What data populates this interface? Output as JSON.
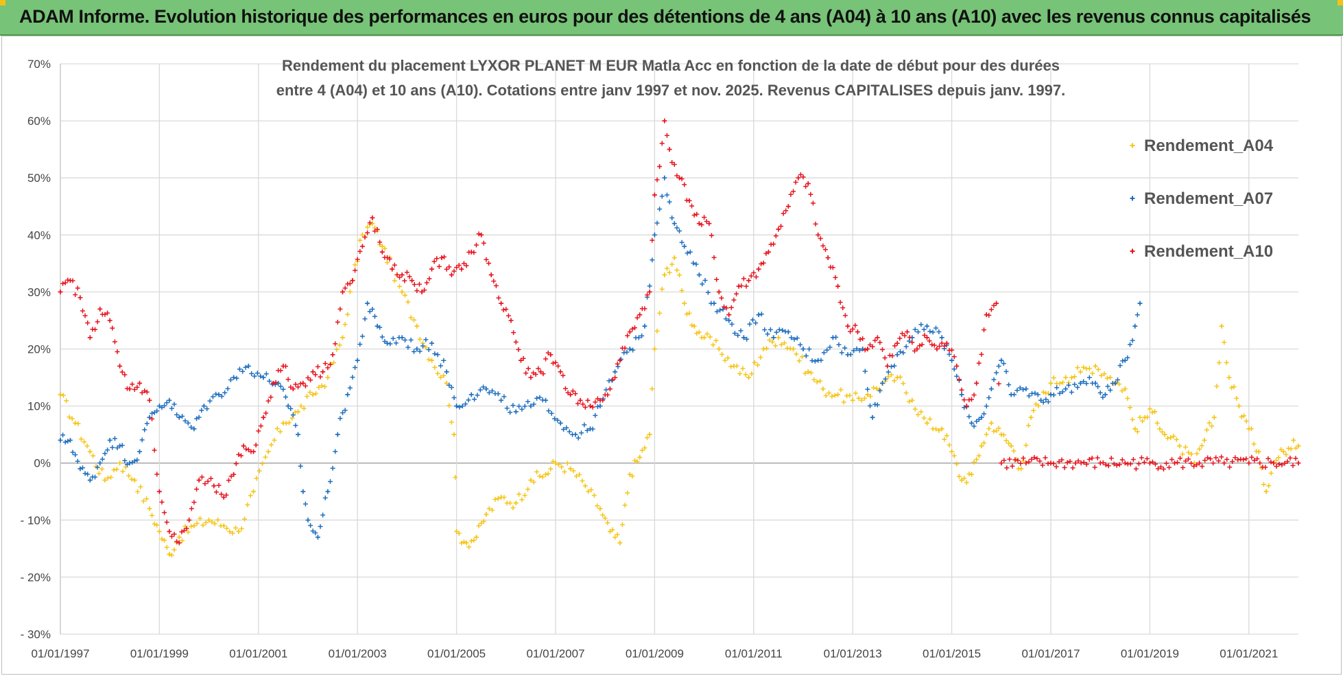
{
  "header": {
    "title": "ADAM Informe. Evolution historique des performances en euros pour des détentions de 4 ans (A04) à 10 ans (A10) avec les revenus connus capitalisés"
  },
  "colors": {
    "A04": "#f5c518",
    "A07": "#1f6fbf",
    "A10": "#e8141e",
    "banner": "#77c377"
  },
  "chart_data": {
    "type": "scatter",
    "title_lines": [
      "Rendement du placement LYXOR  PLANET M  EUR Matla Acc en fonction de la date de début pour des durées",
      "entre 4 (A04) et 10 ans (A10).  Cotations entre janv 1997 et nov. 2025. Revenus CAPITALISES depuis janv. 1997."
    ],
    "xlabel": "",
    "ylabel": "",
    "x_ticks": [
      "01/01/1997",
      "01/01/1999",
      "01/01/2001",
      "01/01/2003",
      "01/01/2005",
      "01/01/2007",
      "01/01/2009",
      "01/01/2011",
      "01/01/2013",
      "01/01/2015",
      "01/01/2017",
      "01/01/2019",
      "01/01/2021"
    ],
    "xlim": [
      1997.0,
      2022.0
    ],
    "y_ticks": [
      "70%",
      "60%",
      "50%",
      "40%",
      "30%",
      "20%",
      "10%",
      "0%",
      "- 10%",
      "- 20%",
      "- 30%"
    ],
    "ylim": [
      -30,
      70
    ],
    "grid": true,
    "legend_position": "top-right",
    "series": [
      {
        "name": "Rendement_A04",
        "color": "#f5c518",
        "points": [
          [
            1997.0,
            12
          ],
          [
            1997.3,
            7
          ],
          [
            1997.6,
            2
          ],
          [
            1997.9,
            -3
          ],
          [
            1998.2,
            0
          ],
          [
            1998.5,
            -3
          ],
          [
            1998.8,
            -8
          ],
          [
            1999.0,
            -12
          ],
          [
            1999.2,
            -16
          ],
          [
            1999.4,
            -13
          ],
          [
            1999.7,
            -11
          ],
          [
            2000.0,
            -10
          ],
          [
            2000.3,
            -11
          ],
          [
            2000.6,
            -12
          ],
          [
            2000.9,
            -5
          ],
          [
            2001.2,
            2
          ],
          [
            2001.5,
            7
          ],
          [
            2001.8,
            9
          ],
          [
            2002.1,
            12
          ],
          [
            2002.4,
            15
          ],
          [
            2002.7,
            22
          ],
          [
            2002.9,
            32
          ],
          [
            2003.1,
            40
          ],
          [
            2003.3,
            42
          ],
          [
            2003.5,
            38
          ],
          [
            2003.7,
            34
          ],
          [
            2003.9,
            30
          ],
          [
            2004.2,
            24
          ],
          [
            2004.5,
            18
          ],
          [
            2004.8,
            14
          ],
          [
            2004.95,
            5
          ],
          [
            2005.0,
            -12
          ],
          [
            2005.2,
            -14
          ],
          [
            2005.4,
            -13
          ],
          [
            2005.6,
            -9
          ],
          [
            2005.9,
            -6
          ],
          [
            2006.2,
            -7
          ],
          [
            2006.5,
            -3
          ],
          [
            2006.8,
            -2
          ],
          [
            2007.0,
            0
          ],
          [
            2007.3,
            -1
          ],
          [
            2007.6,
            -4
          ],
          [
            2007.9,
            -8
          ],
          [
            2008.1,
            -12
          ],
          [
            2008.3,
            -14
          ],
          [
            2008.5,
            -2
          ],
          [
            2008.7,
            1
          ],
          [
            2008.9,
            5
          ],
          [
            2009.0,
            20
          ],
          [
            2009.2,
            33
          ],
          [
            2009.4,
            36
          ],
          [
            2009.6,
            28
          ],
          [
            2009.8,
            24
          ],
          [
            2010.0,
            22
          ],
          [
            2010.3,
            20
          ],
          [
            2010.6,
            17
          ],
          [
            2010.9,
            15
          ],
          [
            2011.2,
            20
          ],
          [
            2011.5,
            22
          ],
          [
            2011.8,
            20
          ],
          [
            2012.1,
            16
          ],
          [
            2012.4,
            13
          ],
          [
            2012.7,
            12
          ],
          [
            2013.0,
            11
          ],
          [
            2013.3,
            12
          ],
          [
            2013.6,
            14
          ],
          [
            2013.9,
            15
          ],
          [
            2014.2,
            11
          ],
          [
            2014.5,
            7
          ],
          [
            2014.8,
            6
          ],
          [
            2015.0,
            2
          ],
          [
            2015.2,
            -3
          ],
          [
            2015.4,
            -2
          ],
          [
            2015.6,
            3
          ],
          [
            2015.8,
            7
          ],
          [
            2016.0,
            5
          ],
          [
            2016.2,
            3
          ],
          [
            2016.4,
            -1
          ],
          [
            2016.6,
            8
          ],
          [
            2016.8,
            11
          ],
          [
            2017.0,
            14
          ],
          [
            2017.3,
            15
          ],
          [
            2017.6,
            16
          ],
          [
            2017.9,
            17
          ],
          [
            2018.2,
            15
          ],
          [
            2018.5,
            13
          ],
          [
            2018.7,
            6
          ],
          [
            2018.9,
            8
          ],
          [
            2019.1,
            9
          ],
          [
            2019.3,
            5
          ],
          [
            2019.6,
            3
          ],
          [
            2019.9,
            0
          ],
          [
            2020.1,
            4
          ],
          [
            2020.3,
            8
          ],
          [
            2020.45,
            24
          ],
          [
            2020.6,
            15
          ],
          [
            2020.8,
            10
          ],
          [
            2021.0,
            6
          ],
          [
            2021.2,
            2
          ],
          [
            2021.35,
            -5
          ],
          [
            2021.5,
            0
          ],
          [
            2021.7,
            2
          ],
          [
            2021.9,
            4
          ],
          [
            2022.0,
            3
          ]
        ]
      },
      {
        "name": "Rendement_A07",
        "color": "#1f6fbf",
        "points": [
          [
            1997.0,
            4
          ],
          [
            1997.2,
            4
          ],
          [
            1997.4,
            -1
          ],
          [
            1997.6,
            -3
          ],
          [
            1997.8,
            0
          ],
          [
            1998.0,
            4
          ],
          [
            1998.2,
            3
          ],
          [
            1998.4,
            0
          ],
          [
            1998.6,
            2
          ],
          [
            1998.8,
            8
          ],
          [
            1999.0,
            10
          ],
          [
            1999.2,
            11
          ],
          [
            1999.4,
            8
          ],
          [
            1999.7,
            6
          ],
          [
            1999.9,
            10
          ],
          [
            2000.2,
            12
          ],
          [
            2000.5,
            15
          ],
          [
            2000.8,
            17
          ],
          [
            2001.1,
            15
          ],
          [
            2001.4,
            14
          ],
          [
            2001.6,
            10
          ],
          [
            2001.8,
            5
          ],
          [
            2001.9,
            -5
          ],
          [
            2002.0,
            -10
          ],
          [
            2002.2,
            -13
          ],
          [
            2002.4,
            -5
          ],
          [
            2002.6,
            5
          ],
          [
            2002.8,
            12
          ],
          [
            2003.0,
            18
          ],
          [
            2003.2,
            28
          ],
          [
            2003.4,
            24
          ],
          [
            2003.6,
            21
          ],
          [
            2003.9,
            22
          ],
          [
            2004.2,
            20
          ],
          [
            2004.5,
            21
          ],
          [
            2004.8,
            16
          ],
          [
            2005.0,
            10
          ],
          [
            2005.3,
            12
          ],
          [
            2005.6,
            13
          ],
          [
            2005.9,
            11
          ],
          [
            2006.2,
            9
          ],
          [
            2006.5,
            10
          ],
          [
            2006.8,
            11
          ],
          [
            2007.1,
            7
          ],
          [
            2007.4,
            5
          ],
          [
            2007.7,
            6
          ],
          [
            2007.9,
            10
          ],
          [
            2008.2,
            16
          ],
          [
            2008.5,
            20
          ],
          [
            2008.8,
            24
          ],
          [
            2009.0,
            40
          ],
          [
            2009.2,
            50
          ],
          [
            2009.4,
            42
          ],
          [
            2009.6,
            38
          ],
          [
            2009.9,
            33
          ],
          [
            2010.2,
            28
          ],
          [
            2010.5,
            25
          ],
          [
            2010.8,
            22
          ],
          [
            2011.1,
            26
          ],
          [
            2011.4,
            22
          ],
          [
            2011.7,
            23
          ],
          [
            2012.0,
            20
          ],
          [
            2012.3,
            18
          ],
          [
            2012.6,
            22
          ],
          [
            2012.9,
            19
          ],
          [
            2013.2,
            20
          ],
          [
            2013.4,
            8
          ],
          [
            2013.6,
            14
          ],
          [
            2013.9,
            19
          ],
          [
            2014.2,
            22
          ],
          [
            2014.5,
            24
          ],
          [
            2014.8,
            22
          ],
          [
            2015.0,
            18
          ],
          [
            2015.2,
            12
          ],
          [
            2015.4,
            7
          ],
          [
            2015.6,
            8
          ],
          [
            2015.8,
            13
          ],
          [
            2016.0,
            18
          ],
          [
            2016.2,
            12
          ],
          [
            2016.5,
            13
          ],
          [
            2016.8,
            11
          ],
          [
            2017.0,
            12
          ],
          [
            2017.3,
            13
          ],
          [
            2017.6,
            14
          ],
          [
            2017.9,
            14
          ],
          [
            2018.1,
            12
          ],
          [
            2018.3,
            14
          ],
          [
            2018.5,
            18
          ],
          [
            2018.7,
            24
          ],
          [
            2018.8,
            28
          ]
        ]
      },
      {
        "name": "Rendement_A10",
        "color": "#e8141e",
        "points": [
          [
            1997.0,
            30
          ],
          [
            1997.2,
            32
          ],
          [
            1997.4,
            29
          ],
          [
            1997.6,
            22
          ],
          [
            1997.8,
            27
          ],
          [
            1998.0,
            25
          ],
          [
            1998.2,
            17
          ],
          [
            1998.4,
            13
          ],
          [
            1998.6,
            14
          ],
          [
            1998.8,
            11
          ],
          [
            1999.0,
            -5
          ],
          [
            1999.2,
            -12
          ],
          [
            1999.4,
            -14
          ],
          [
            1999.6,
            -10
          ],
          [
            1999.8,
            -3
          ],
          [
            2000.1,
            -4
          ],
          [
            2000.3,
            -6
          ],
          [
            2000.5,
            -2
          ],
          [
            2000.7,
            3
          ],
          [
            2000.9,
            2
          ],
          [
            2001.1,
            8
          ],
          [
            2001.3,
            14
          ],
          [
            2001.5,
            17
          ],
          [
            2001.7,
            13
          ],
          [
            2001.9,
            14
          ],
          [
            2002.1,
            16
          ],
          [
            2002.3,
            16
          ],
          [
            2002.5,
            19
          ],
          [
            2002.7,
            30
          ],
          [
            2002.9,
            32
          ],
          [
            2003.1,
            38
          ],
          [
            2003.3,
            43
          ],
          [
            2003.5,
            37
          ],
          [
            2003.7,
            34
          ],
          [
            2003.9,
            33
          ],
          [
            2004.1,
            32
          ],
          [
            2004.3,
            30
          ],
          [
            2004.5,
            34
          ],
          [
            2004.7,
            36
          ],
          [
            2004.9,
            33
          ],
          [
            2005.1,
            34
          ],
          [
            2005.3,
            37
          ],
          [
            2005.5,
            40
          ],
          [
            2005.7,
            33
          ],
          [
            2005.9,
            28
          ],
          [
            2006.1,
            25
          ],
          [
            2006.3,
            18
          ],
          [
            2006.5,
            15
          ],
          [
            2006.7,
            16
          ],
          [
            2006.9,
            19
          ],
          [
            2007.1,
            16
          ],
          [
            2007.3,
            12
          ],
          [
            2007.5,
            11
          ],
          [
            2007.7,
            10
          ],
          [
            2007.9,
            11
          ],
          [
            2008.1,
            13
          ],
          [
            2008.3,
            18
          ],
          [
            2008.5,
            23
          ],
          [
            2008.7,
            26
          ],
          [
            2008.9,
            30
          ],
          [
            2009.0,
            47
          ],
          [
            2009.1,
            52
          ],
          [
            2009.2,
            60
          ],
          [
            2009.3,
            55
          ],
          [
            2009.5,
            50
          ],
          [
            2009.7,
            46
          ],
          [
            2009.9,
            42
          ],
          [
            2010.1,
            42
          ],
          [
            2010.3,
            30
          ],
          [
            2010.5,
            26
          ],
          [
            2010.7,
            31
          ],
          [
            2010.9,
            32
          ],
          [
            2011.1,
            34
          ],
          [
            2011.3,
            37
          ],
          [
            2011.5,
            41
          ],
          [
            2011.7,
            45
          ],
          [
            2011.9,
            50
          ],
          [
            2012.1,
            49
          ],
          [
            2012.3,
            40
          ],
          [
            2012.5,
            36
          ],
          [
            2012.7,
            31
          ],
          [
            2012.9,
            24
          ],
          [
            2013.1,
            23
          ],
          [
            2013.3,
            20
          ],
          [
            2013.5,
            22
          ],
          [
            2013.7,
            17
          ],
          [
            2013.9,
            21
          ],
          [
            2014.1,
            23
          ],
          [
            2014.3,
            20
          ],
          [
            2014.5,
            22
          ],
          [
            2014.7,
            20
          ],
          [
            2014.9,
            21
          ],
          [
            2015.1,
            17
          ],
          [
            2015.3,
            10
          ],
          [
            2015.5,
            14
          ],
          [
            2015.7,
            26
          ],
          [
            2015.9,
            28
          ],
          [
            2016.0,
            0
          ],
          [
            2016.5,
            0
          ],
          [
            2017.0,
            0
          ],
          [
            2017.5,
            0
          ],
          [
            2018.0,
            0
          ],
          [
            2018.5,
            0
          ],
          [
            2019.0,
            0
          ],
          [
            2019.5,
            0
          ],
          [
            2020.0,
            0
          ],
          [
            2020.5,
            0
          ],
          [
            2021.0,
            0
          ],
          [
            2021.5,
            0
          ],
          [
            2022.0,
            0
          ]
        ]
      }
    ]
  }
}
